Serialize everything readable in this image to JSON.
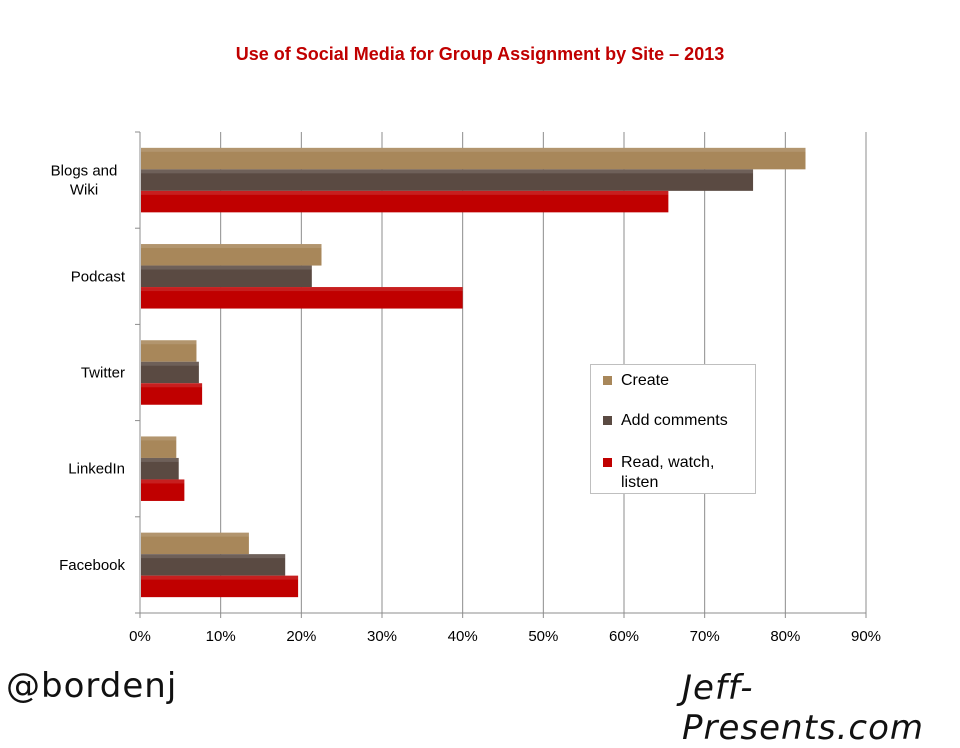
{
  "chart_data": {
    "type": "bar",
    "orientation": "horizontal",
    "title": "Use of Social Media for Group Assignment by Site – 2013",
    "categories": [
      "Blogs and Wiki",
      "Podcast",
      "Twitter",
      "LinkedIn",
      "Facebook"
    ],
    "category_label_lines": [
      [
        "Blogs and",
        "Wiki"
      ],
      [
        "Podcast"
      ],
      [
        "Twitter"
      ],
      [
        "LinkedIn"
      ],
      [
        "Facebook"
      ]
    ],
    "series": [
      {
        "name": "Create",
        "color": "#a8875a",
        "values": [
          82.5,
          22.5,
          7,
          4.5,
          13.5
        ]
      },
      {
        "name": "Add comments",
        "color": "#5a4a42",
        "values": [
          76,
          21.3,
          7.3,
          4.8,
          18
        ]
      },
      {
        "name": "Read, watch, listen",
        "color": "#c00000",
        "values": [
          65.5,
          40,
          7.7,
          5.5,
          19.6
        ]
      }
    ],
    "xlim": [
      0,
      90
    ],
    "xticks": [
      "0%",
      "10%",
      "20%",
      "30%",
      "40%",
      "50%",
      "60%",
      "70%",
      "80%",
      "90%"
    ],
    "grid": true,
    "legend_position": "center-right",
    "xlabel": "",
    "ylabel": ""
  },
  "legend_labels": [
    "Create",
    "Add comments",
    "Read, watch, listen"
  ],
  "signature_left": "@bordenj",
  "signature_right": "Jeff-Presents.com"
}
